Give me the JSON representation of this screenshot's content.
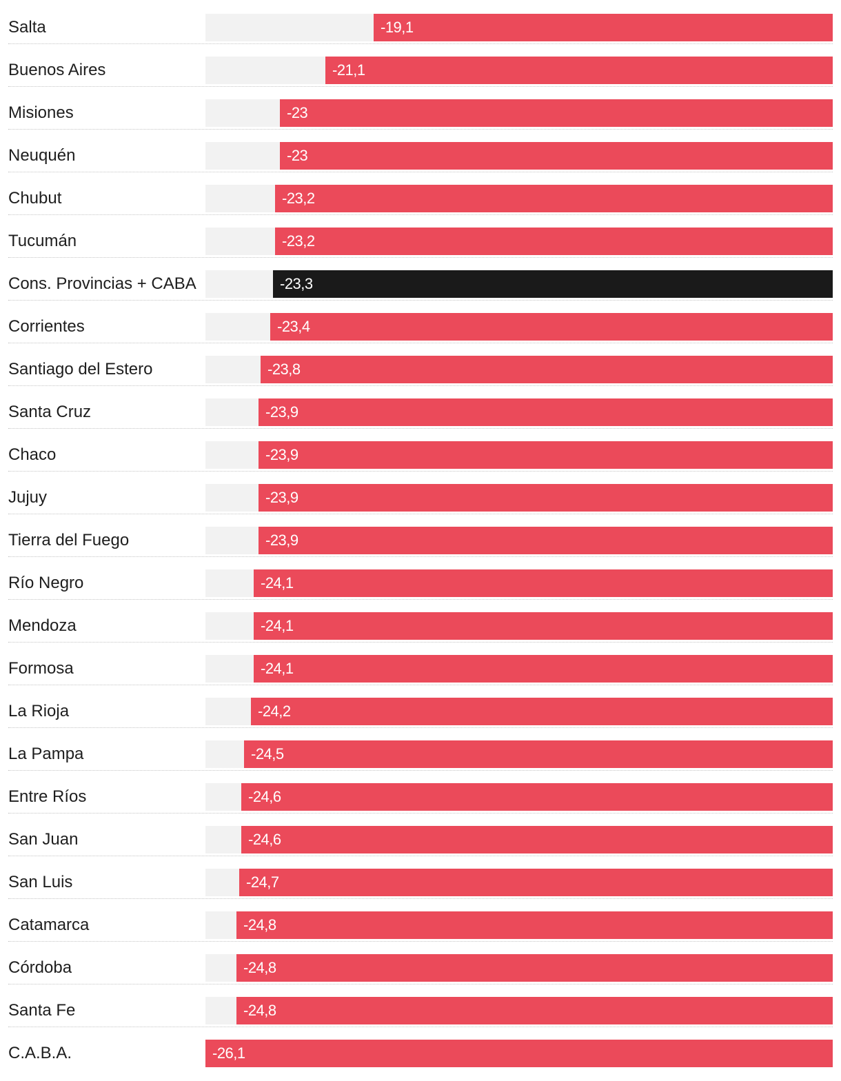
{
  "chart_data": {
    "type": "bar",
    "orientation": "horizontal",
    "title": "",
    "xlabel": "",
    "ylabel": "",
    "xlim": [
      0,
      -26.1
    ],
    "grid": false,
    "legend": "none",
    "colors": {
      "default": "#eb4a5a",
      "highlight": "#1a1a1a",
      "track": "#f2f2f2",
      "value_label": "#ffffff"
    },
    "categories": [
      "Salta",
      "Buenos Aires",
      "Misiones",
      "Neuquén",
      "Chubut",
      "Tucumán",
      "Cons. Provincias + CABA",
      "Corrientes",
      "Santiago del Estero",
      "Santa Cruz",
      "Chaco",
      "Jujuy",
      "Tierra del Fuego",
      "Río Negro",
      "Mendoza",
      "Formosa",
      "La Rioja",
      "La Pampa",
      "Entre Ríos",
      "San Juan",
      "San Luis",
      "Catamarca",
      "Córdoba",
      "Santa Fe",
      "C.A.B.A."
    ],
    "values": [
      -19.1,
      -21.1,
      -23,
      -23,
      -23.2,
      -23.2,
      -23.3,
      -23.4,
      -23.8,
      -23.9,
      -23.9,
      -23.9,
      -23.9,
      -24.1,
      -24.1,
      -24.1,
      -24.2,
      -24.5,
      -24.6,
      -24.6,
      -24.7,
      -24.8,
      -24.8,
      -24.8,
      -26.1
    ],
    "value_labels": [
      "-19,1",
      "-21,1",
      "-23",
      "-23",
      "-23,2",
      "-23,2",
      "-23,3",
      "-23,4",
      "-23,8",
      "-23,9",
      "-23,9",
      "-23,9",
      "-23,9",
      "-24,1",
      "-24,1",
      "-24,1",
      "-24,2",
      "-24,5",
      "-24,6",
      "-24,6",
      "-24,7",
      "-24,8",
      "-24,8",
      "-24,8",
      "-26,1"
    ],
    "highlight_index": 6
  }
}
